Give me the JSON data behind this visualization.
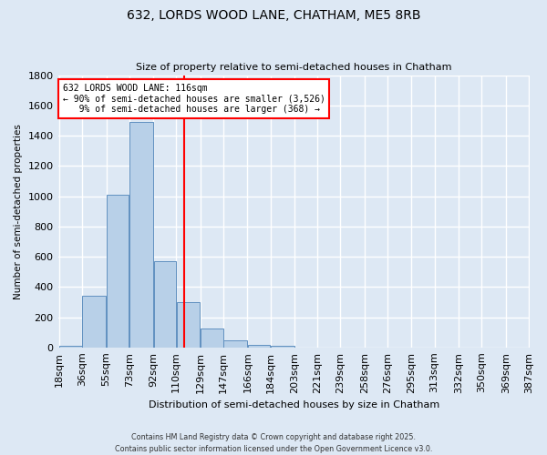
{
  "title_line1": "632, LORDS WOOD LANE, CHATHAM, ME5 8RB",
  "title_line2": "Size of property relative to semi-detached houses in Chatham",
  "xlabel": "Distribution of semi-detached houses by size in Chatham",
  "ylabel": "Number of semi-detached properties",
  "bar_heights": [
    10,
    340,
    1010,
    1490,
    570,
    300,
    125,
    45,
    15,
    10,
    0,
    0,
    0,
    0,
    0,
    0,
    0,
    0,
    0,
    0
  ],
  "bin_edges": [
    18,
    36,
    55,
    73,
    92,
    110,
    129,
    147,
    166,
    184,
    203,
    221,
    239,
    258,
    276,
    295,
    313,
    332,
    350,
    369,
    387
  ],
  "bar_color": "#b8d0e8",
  "bar_edgecolor": "#6090c0",
  "vline_x": 116,
  "vline_color": "red",
  "annotation_line1": "632 LORDS WOOD LANE: 116sqm",
  "annotation_line2": "← 90% of semi-detached houses are smaller (3,526)",
  "annotation_line3": "   9% of semi-detached houses are larger (368) →",
  "annotation_box_color": "white",
  "annotation_box_edgecolor": "red",
  "ylim": [
    0,
    1800
  ],
  "yticks": [
    0,
    200,
    400,
    600,
    800,
    1000,
    1200,
    1400,
    1600,
    1800
  ],
  "background_color": "#dde8f4",
  "grid_color": "white",
  "footer_line1": "Contains HM Land Registry data © Crown copyright and database right 2025.",
  "footer_line2": "Contains public sector information licensed under the Open Government Licence v3.0.",
  "tick_labels": [
    "18sqm",
    "36sqm",
    "55sqm",
    "73sqm",
    "92sqm",
    "110sqm",
    "129sqm",
    "147sqm",
    "166sqm",
    "184sqm",
    "203sqm",
    "221sqm",
    "239sqm",
    "258sqm",
    "276sqm",
    "295sqm",
    "313sqm",
    "332sqm",
    "350sqm",
    "369sqm",
    "387sqm"
  ],
  "figsize": [
    6.0,
    5.0
  ],
  "dpi": 100
}
